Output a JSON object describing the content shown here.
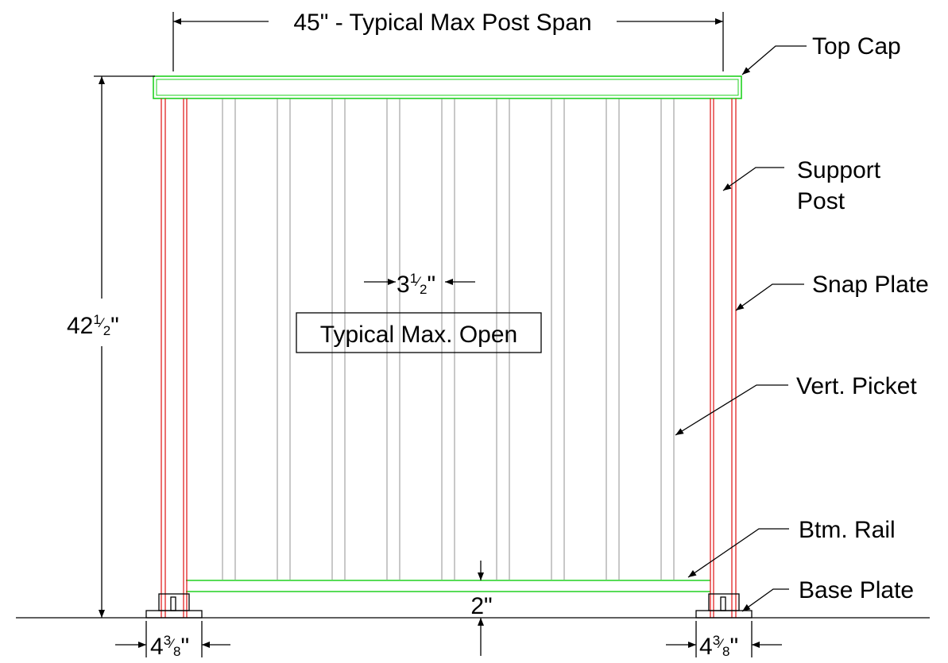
{
  "labels": {
    "span": "45\" - Typical Max Post Span",
    "top_cap": "Top Cap",
    "support_post_1": "Support",
    "support_post_2": "Post",
    "snap_plate": "Snap Plate",
    "vert_picket": "Vert. Picket",
    "btm_rail": "Btm. Rail",
    "base_plate": "Base Plate",
    "open_box": "Typical Max. Open"
  },
  "dimensions": {
    "height": {
      "whole": "42",
      "num": "1",
      "den": "2",
      "unit": "\""
    },
    "opening": {
      "whole": "3",
      "num": "1",
      "den": "2",
      "unit": "\""
    },
    "gap": "2\"",
    "base_left": {
      "whole": "4",
      "num": "3",
      "den": "8",
      "unit": "\""
    },
    "base_right": {
      "whole": "4",
      "num": "3",
      "den": "8",
      "unit": "\""
    }
  },
  "colors": {
    "post": "#e01010",
    "rail": "#20d020",
    "picket": "#c8c8c8",
    "line": "#000000"
  }
}
